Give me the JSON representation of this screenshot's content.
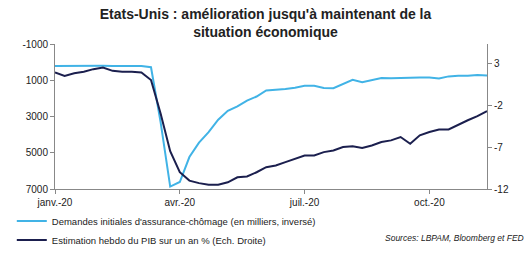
{
  "chart_data": {
    "type": "line",
    "title": "Etats-Unis : amélioration jusqu'à maintenant de la\nsituation économique",
    "categories": [
      "janv.-20",
      null,
      null,
      null,
      null,
      null,
      null,
      null,
      null,
      null,
      null,
      null,
      null,
      "avr.-20",
      null,
      null,
      null,
      null,
      null,
      null,
      null,
      null,
      null,
      null,
      null,
      null,
      "juil.-20",
      null,
      null,
      null,
      null,
      null,
      null,
      null,
      null,
      null,
      null,
      null,
      null,
      "oct.-20",
      null,
      null,
      null,
      null,
      null,
      null
    ],
    "series": [
      {
        "name": "Demandes initiales d'assurance-chômage (en milliers, inversé)",
        "color": "#41b3e6",
        "values": [
          216,
          207,
          220,
          216,
          203,
          205,
          211,
          219,
          217,
          211,
          282,
          3307,
          6867,
          6615,
          5237,
          4442,
          3867,
          3176,
          2687,
          2446,
          2123,
          1897,
          1566,
          1540,
          1482,
          1413,
          1310,
          1300,
          1422,
          1435,
          1186,
          971,
          1104,
          1011,
          881,
          893,
          866,
          873,
          849,
          845,
          898,
          787,
          751,
          757,
          709,
          742
        ]
      },
      {
        "name": "Estimation hebdo du PIB sur un an % (Ech. Droite)",
        "color": "#1b1f4e",
        "axis": "y2",
        "values": [
          1.9,
          1.5,
          1.8,
          2.0,
          2.3,
          2.5,
          2.1,
          2.0,
          2.0,
          1.9,
          1.0,
          -3.0,
          -7.5,
          -10.0,
          -11.0,
          -11.3,
          -11.5,
          -11.5,
          -11.2,
          -10.6,
          -10.5,
          -10.0,
          -9.4,
          -9.2,
          -8.8,
          -8.4,
          -8.0,
          -8.0,
          -7.6,
          -7.4,
          -7.0,
          -6.9,
          -7.1,
          -6.8,
          -6.4,
          -6.2,
          -5.8,
          -6.6,
          -5.6,
          -5.2,
          -4.9,
          -4.9,
          -4.3,
          -3.8,
          -3.3,
          -2.7
        ]
      }
    ],
    "ylim": [
      7000,
      -1000
    ],
    "yticks": [
      -1000,
      1000,
      3000,
      5000,
      7000
    ],
    "y2lim": [
      -12,
      5.3
    ],
    "y2ticks": [
      3,
      -2,
      -7,
      -12
    ],
    "grid": false,
    "legend": "bottom",
    "annotations": [
      "Sources: LBPAM, Bloomberg et FED"
    ]
  }
}
